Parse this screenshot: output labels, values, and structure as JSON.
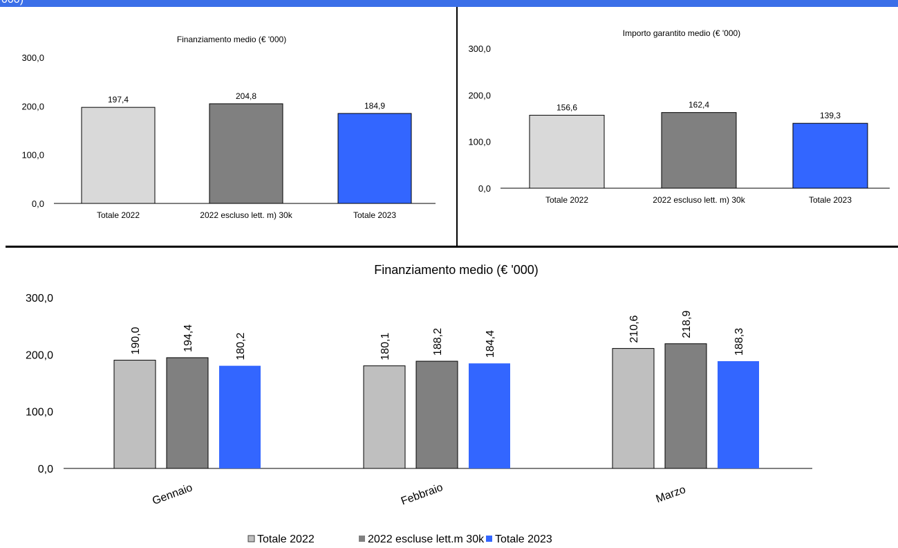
{
  "header": {
    "cut_text": "000)"
  },
  "colors": {
    "totale_2022": "#d9d9d9",
    "totale_2022_monthly": "#bfbfbf",
    "escluso_30k": "#808080",
    "totale_2023": "#3366ff",
    "header_bar": "#3b6fe8"
  },
  "chart_data": [
    {
      "type": "bar",
      "title": "Finanziamento medio (€ '000)",
      "categories": [
        "Totale 2022",
        "2022 escluso lett. m) 30k",
        "Totale 2023"
      ],
      "values": [
        197.4,
        204.8,
        184.9
      ],
      "value_labels": [
        "197,4",
        "204,8",
        "184,9"
      ],
      "yticks": [
        "0,0",
        "100,0",
        "200,0",
        "300,0"
      ],
      "ylim": [
        0,
        300
      ],
      "grid": false,
      "legend": "none",
      "bar_colors": [
        "#d9d9d9",
        "#808080",
        "#3366ff"
      ]
    },
    {
      "type": "bar",
      "title": "Importo garantito medio (€ '000)",
      "categories": [
        "Totale 2022",
        "2022 escluso lett. m) 30k",
        "Totale 2023"
      ],
      "values": [
        156.6,
        162.4,
        139.3
      ],
      "value_labels": [
        "156,6",
        "162,4",
        "139,3"
      ],
      "yticks": [
        "0,0",
        "100,0",
        "200,0",
        "300,0"
      ],
      "ylim": [
        0,
        300
      ],
      "grid": false,
      "legend": "none",
      "bar_colors": [
        "#d9d9d9",
        "#808080",
        "#3366ff"
      ]
    },
    {
      "type": "bar",
      "title": "Finanziamento medio (€ '000)",
      "categories": [
        "Gennaio",
        "Febbraio",
        "Marzo"
      ],
      "series": [
        {
          "name": "Totale 2022",
          "color": "#bfbfbf",
          "values": [
            190.0,
            180.1,
            210.6
          ],
          "value_labels": [
            "190,0",
            "180,1",
            "210,6"
          ]
        },
        {
          "name": "2022 escluse lett.m 30k",
          "color": "#808080",
          "values": [
            194.4,
            188.2,
            218.9
          ],
          "value_labels": [
            "194,4",
            "188,2",
            "218,9"
          ]
        },
        {
          "name": "Totale 2023",
          "color": "#3366ff",
          "values": [
            180.2,
            184.4,
            188.3
          ],
          "value_labels": [
            "180,2",
            "184,4",
            "188,3"
          ]
        }
      ],
      "yticks": [
        "0,0",
        "100,0",
        "200,0",
        "300,0"
      ],
      "ylim": [
        0,
        300
      ],
      "grid": false,
      "legend": "bottom"
    }
  ]
}
